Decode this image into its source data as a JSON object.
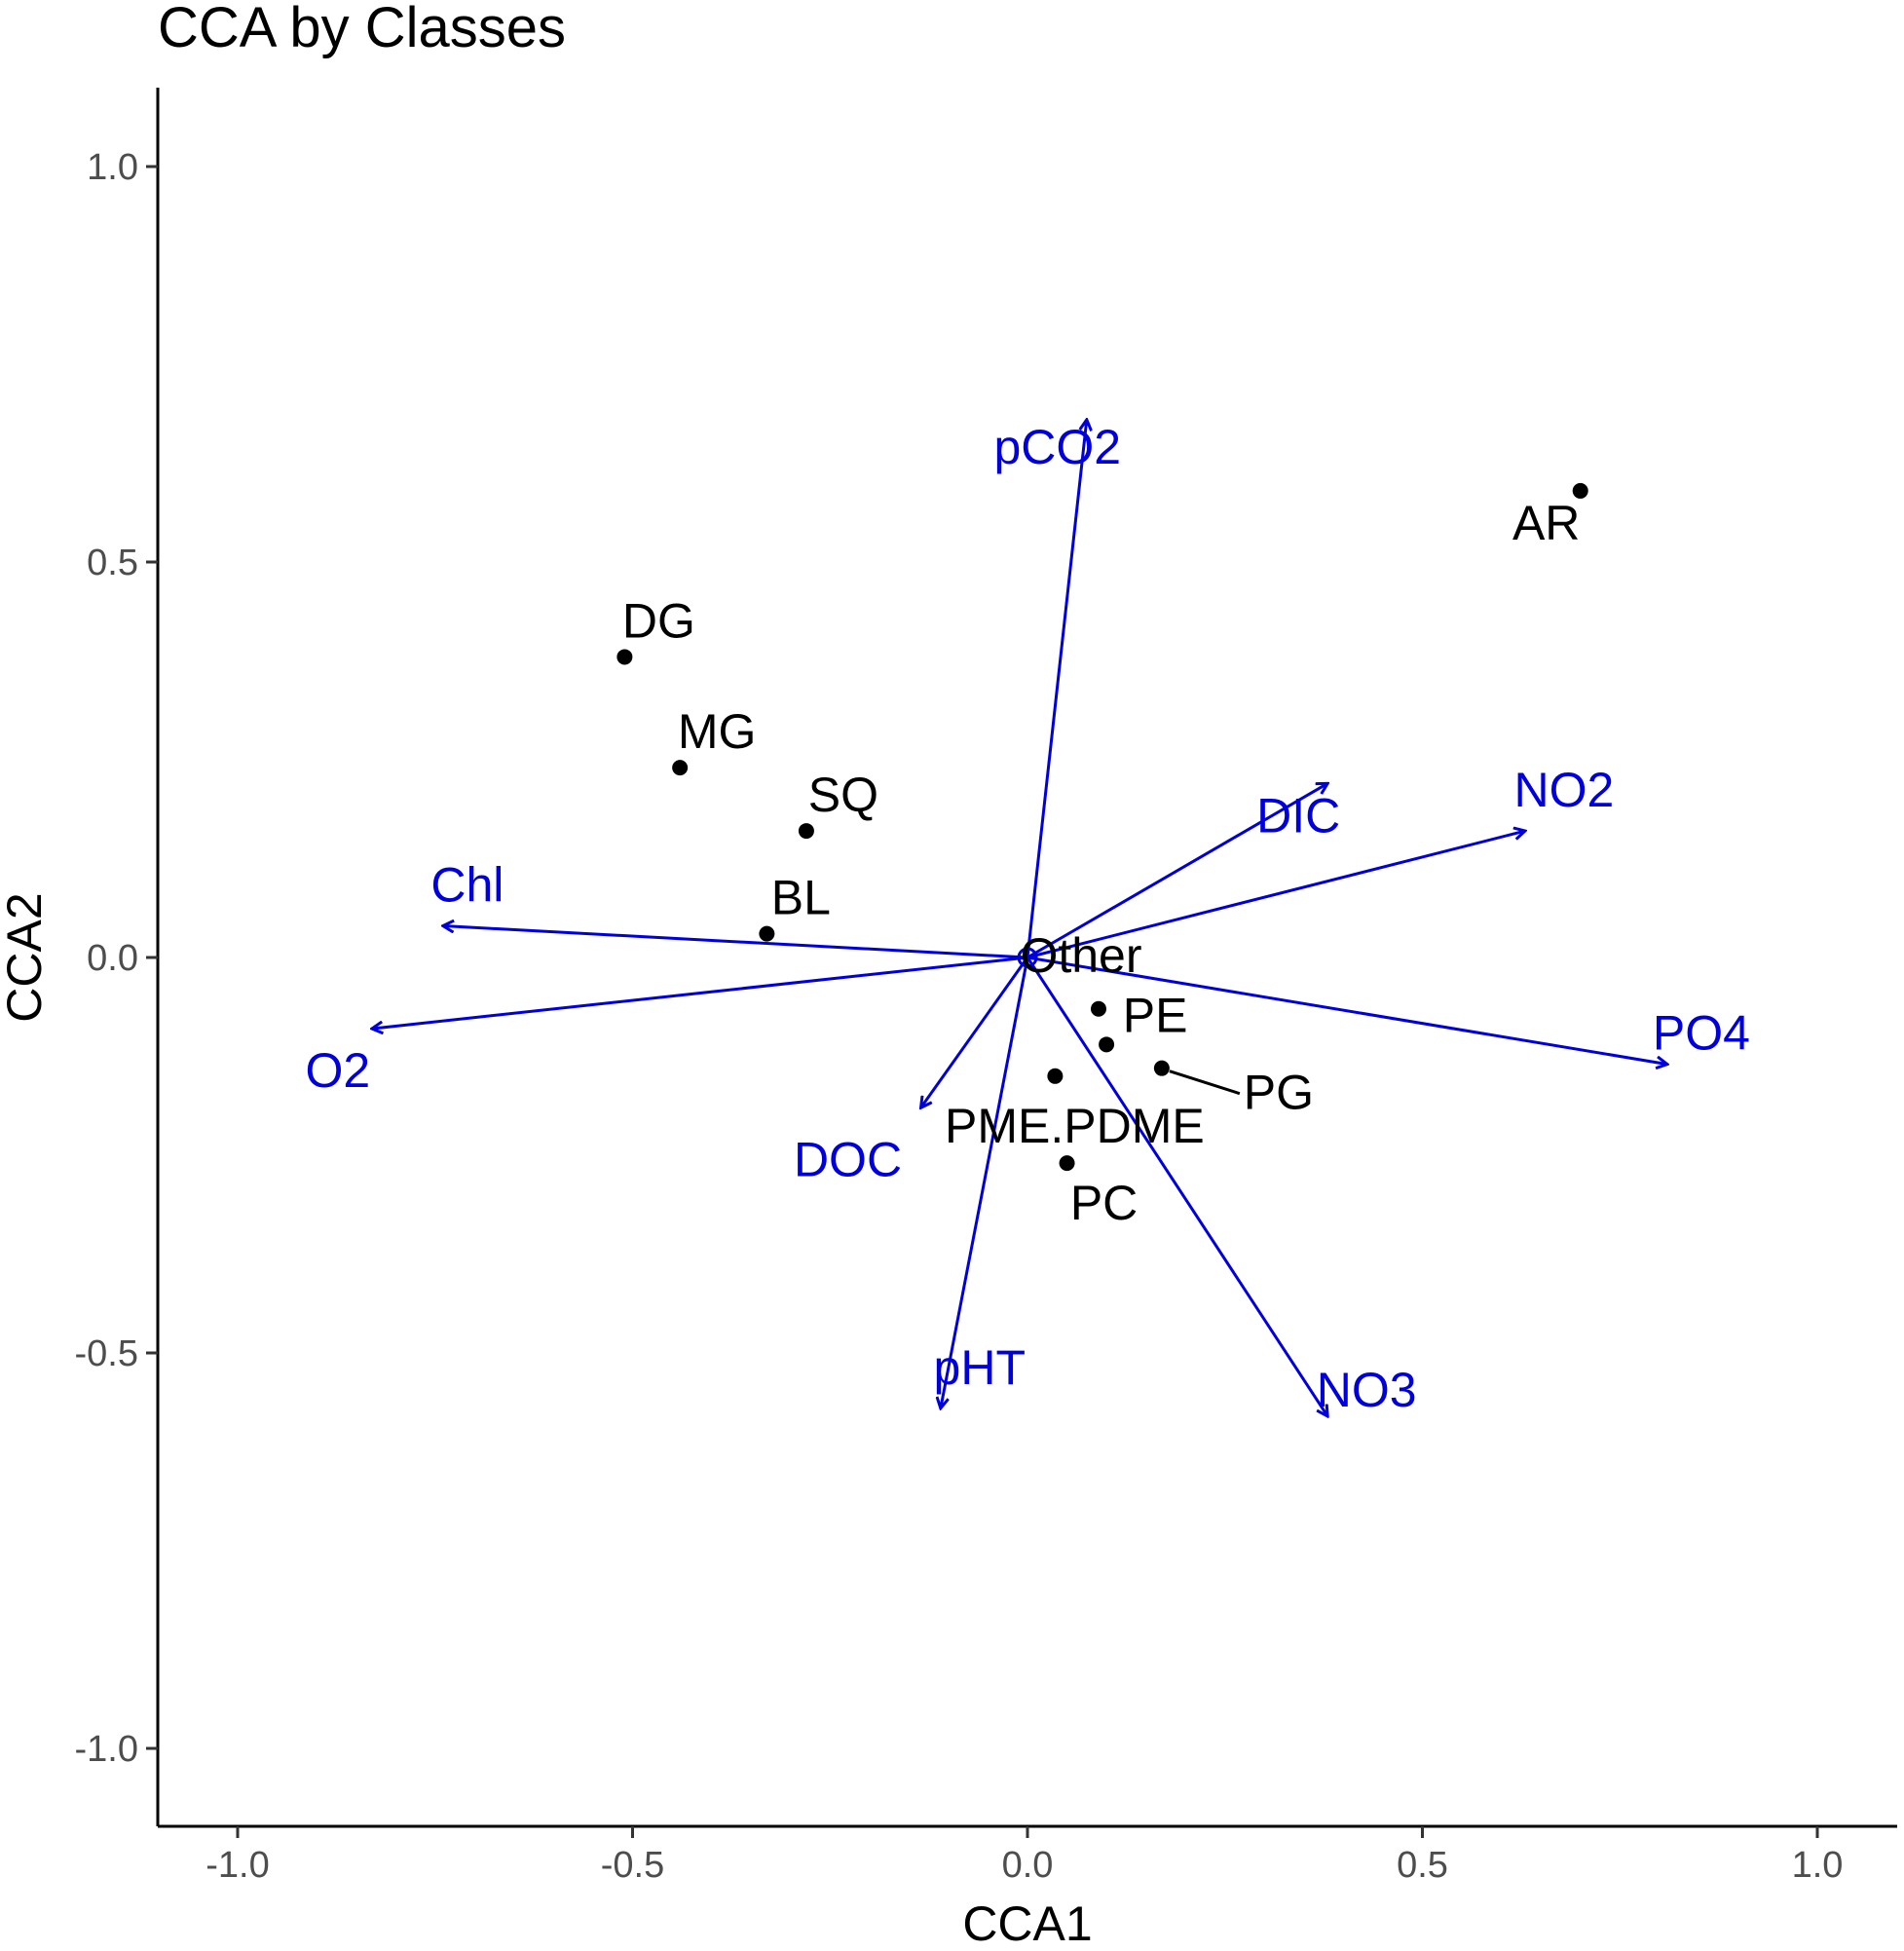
{
  "chart_data": {
    "type": "scatter",
    "title": "CCA by Classes",
    "xlabel": "CCA1",
    "ylabel": "CCA2",
    "xlim": [
      -1.1,
      1.1
    ],
    "ylim": [
      -1.1,
      1.1
    ],
    "x_ticks": [
      -1.0,
      -0.5,
      0.0,
      0.5,
      1.0
    ],
    "y_ticks": [
      -1.0,
      -0.5,
      0.0,
      0.5,
      1.0
    ],
    "x_tick_labels": [
      "-1.0",
      "-0.5",
      "0.0",
      "0.5",
      "1.0"
    ],
    "y_tick_labels": [
      "-1.0",
      "-0.5",
      "0.0",
      "0.5",
      "1.0"
    ],
    "grid": false,
    "series": [
      {
        "kind": "species-points",
        "color": "#000000",
        "points": [
          {
            "label": "AR",
            "x": 0.7,
            "y": 0.59
          },
          {
            "label": "DG",
            "x": -0.51,
            "y": 0.38
          },
          {
            "label": "MG",
            "x": -0.44,
            "y": 0.24
          },
          {
            "label": "SQ",
            "x": -0.28,
            "y": 0.16
          },
          {
            "label": "BL",
            "x": -0.33,
            "y": 0.03
          },
          {
            "label": "Other",
            "x": 0.0,
            "y": 0.0
          },
          {
            "label": "",
            "x": 0.09,
            "y": -0.065
          },
          {
            "label": "PE",
            "x": 0.1,
            "y": -0.11
          },
          {
            "label": "PG",
            "x": 0.17,
            "y": -0.14
          },
          {
            "label": "PME.PDME",
            "x": 0.035,
            "y": -0.15
          },
          {
            "label": "PC",
            "x": 0.05,
            "y": -0.26
          }
        ]
      },
      {
        "kind": "environmental-vectors",
        "color": "#0000dd",
        "vectors": [
          {
            "label": "pCO2",
            "x": 0.075,
            "y": 0.68
          },
          {
            "label": "DIC",
            "x": 0.38,
            "y": 0.22
          },
          {
            "label": "NO2",
            "x": 0.63,
            "y": 0.16
          },
          {
            "label": "PO4",
            "x": 0.81,
            "y": -0.135
          },
          {
            "label": "NO3",
            "x": 0.38,
            "y": -0.58
          },
          {
            "label": "pHT",
            "x": -0.11,
            "y": -0.57
          },
          {
            "label": "DOC",
            "x": -0.135,
            "y": -0.19
          },
          {
            "label": "O2",
            "x": -0.83,
            "y": -0.09
          },
          {
            "label": "Chl",
            "x": -0.74,
            "y": 0.04
          }
        ]
      }
    ]
  }
}
